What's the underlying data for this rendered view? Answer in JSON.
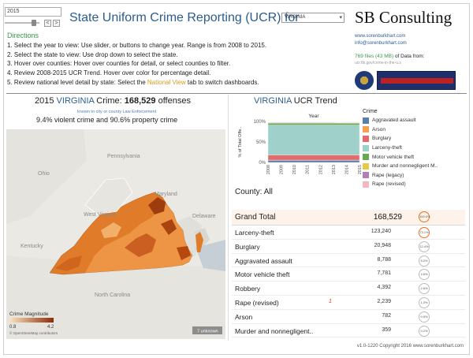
{
  "controls": {
    "year": "2015",
    "prev": "<",
    "next": ">",
    "state": "VIRGINIA",
    "caret": "▾"
  },
  "header": {
    "title": "State Uniform Crime Reporting (UCR) for",
    "brand": "SB Consulting"
  },
  "directions": {
    "heading": "Directions",
    "d1": "1. Select the year to view: Use slider, or buttons to change year. Range is from 2008 to 2015.",
    "d2": "2. Select the state to view: Use drop down to select the state.",
    "d3": "3. Hover over counties: Hover over counties for detail, or select counties to filter.",
    "d4": "4. Review 2008-2015 UCR Trend.  Hover over color for percentage detail.",
    "d5a": "5. Review national level detail by state: Select the ",
    "d5b": "National View",
    "d5c": " tab to switch dashboards."
  },
  "info": {
    "site": "www.sorenburkhart.com",
    "email": "info@sorenburkhart.com",
    "files_count": "769 files (43 MB)",
    "files_tail": " of Data from:",
    "files_src": "ucr.fbi.gov/crime-in-the-u.s"
  },
  "summary": {
    "year": "2015",
    "state": "VIRGINIA",
    "crime_label": "Crime:",
    "total": "168,529",
    "unit": "offenses",
    "note": "known to city or county Law Enforcement",
    "violent_pct": "9.4%",
    "violent_text": "violent crime and",
    "property_pct": "90.6%",
    "property_text": "property crime"
  },
  "map": {
    "labels": {
      "pennsylvania": "Pennsylvania",
      "ohio": "Ohio",
      "maryland": "Maryland",
      "delaware": "Delaware",
      "west_virginia": "West\nVirginia",
      "kentucky": "Kentucky",
      "north_carolina": "North Carolina"
    },
    "legend_title": "Crime Magnitude",
    "legend_min": "0.8",
    "legend_max": "4.2",
    "credit": "© OpenStreetMap contributors",
    "unknown": "7 unknown"
  },
  "trend": {
    "state": "VIRGINIA",
    "title": "UCR Trend",
    "x_title": "Year",
    "y_title": "% of Total Offe..",
    "legend_title": "Crime"
  },
  "chart_data": {
    "type": "area",
    "x": [
      "2008",
      "2009",
      "2010",
      "2011",
      "2012",
      "2013",
      "2014",
      "2015"
    ],
    "ylim": [
      0,
      100
    ],
    "y_ticks": [
      "100%",
      "50%",
      "0%"
    ],
    "series": [
      {
        "name": "Aggravated assault",
        "color": "#5b7fa8",
        "values": [
          5.2,
          5.2,
          5.2,
          5.2,
          5.2,
          5.2,
          5.2,
          5.2
        ]
      },
      {
        "name": "Arson",
        "color": "#f3a14c",
        "values": [
          0.5,
          0.5,
          0.5,
          0.5,
          0.5,
          0.5,
          0.5,
          0.5
        ]
      },
      {
        "name": "Burglary",
        "color": "#e46b6b",
        "values": [
          12.4,
          12.4,
          12.4,
          12.4,
          12.4,
          12.4,
          12.4,
          12.4
        ]
      },
      {
        "name": "Larceny-theft",
        "color": "#9fd0c9",
        "values": [
          73.1,
          73.1,
          73.1,
          73.1,
          73.1,
          73.1,
          73.1,
          73.1
        ]
      },
      {
        "name": "Motor vehicle theft",
        "color": "#6aa84f",
        "values": [
          4.6,
          4.6,
          4.6,
          4.6,
          4.6,
          4.6,
          4.6,
          4.6
        ]
      },
      {
        "name": "Murder and nonnegligent M..",
        "color": "#e8c84a",
        "values": [
          0.2,
          0.2,
          0.2,
          0.2,
          0.2,
          0.2,
          0.2,
          0.2
        ]
      },
      {
        "name": "Rape (legacy)",
        "color": "#b180b5",
        "values": [
          1.4,
          1.4,
          1.4,
          1.4,
          1.4,
          1.4,
          0,
          0
        ]
      },
      {
        "name": "Rape (revised)",
        "color": "#f4b6c2",
        "values": [
          0,
          0,
          0,
          0,
          0,
          0,
          1.3,
          1.3
        ]
      }
    ]
  },
  "county": {
    "label": "County:",
    "value": "All"
  },
  "table": {
    "grand": {
      "label": "Grand Total",
      "value": "168,529",
      "pct": "100.0%"
    },
    "rows": [
      {
        "label": "Larceny-theft",
        "value": "123,240",
        "pct": "73.1%",
        "hot": true
      },
      {
        "label": "Burglary",
        "value": "20,948",
        "pct": "12.4%"
      },
      {
        "label": "Aggravated assault",
        "value": "8,788",
        "pct": "5.2%"
      },
      {
        "label": "Motor vehicle theft",
        "value": "7,781",
        "pct": "4.6%"
      },
      {
        "label": "Robbery",
        "value": "4,392",
        "pct": "2.6%"
      },
      {
        "label": "Rape (revised)",
        "value": "2,239",
        "pct": "1.3%",
        "mark": "1"
      },
      {
        "label": "Arson",
        "value": "782",
        "pct": "0.5%"
      },
      {
        "label": "Murder and nonnegligent..",
        "value": "359",
        "pct": "0.2%"
      }
    ]
  },
  "footer": "v1.0-1220 Copyright 2016 www.sorenburkhart.com"
}
